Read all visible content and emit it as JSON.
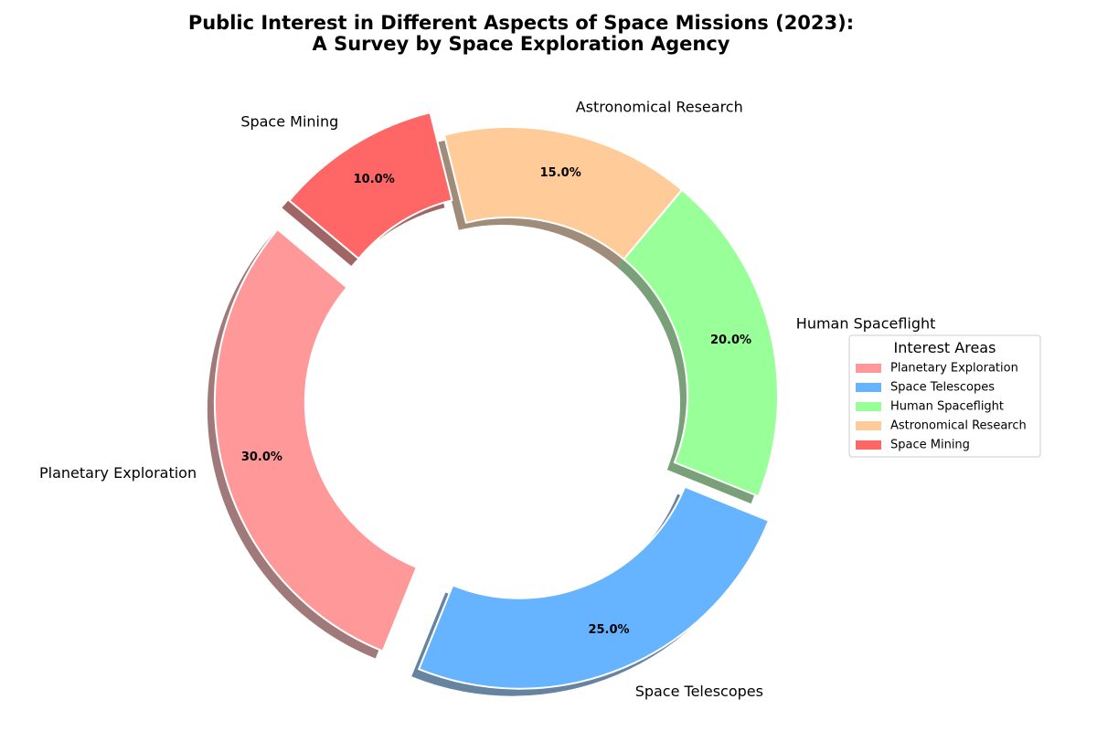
{
  "chart_data": {
    "type": "pie",
    "title_line1": "Public Interest in Different Aspects of Space Missions (2023):",
    "title_line2": "A Survey by Space Exploration Agency",
    "categories": [
      "Planetary Exploration",
      "Space Telescopes",
      "Human Spaceflight",
      "Astronomical Research",
      "Space Mining"
    ],
    "values": [
      30,
      25,
      20,
      15,
      10
    ],
    "value_labels": [
      "30.0%",
      "25.0%",
      "20.0%",
      "15.0%",
      "10.0%"
    ],
    "colors": [
      "#FF9999",
      "#66B3FF",
      "#99FF99",
      "#FFCC99",
      "#FF6666"
    ],
    "exploded": [
      true,
      true,
      false,
      false,
      true
    ],
    "shadow": true,
    "donut": true,
    "legend": {
      "title": "Interest Areas",
      "placement": "right"
    }
  }
}
